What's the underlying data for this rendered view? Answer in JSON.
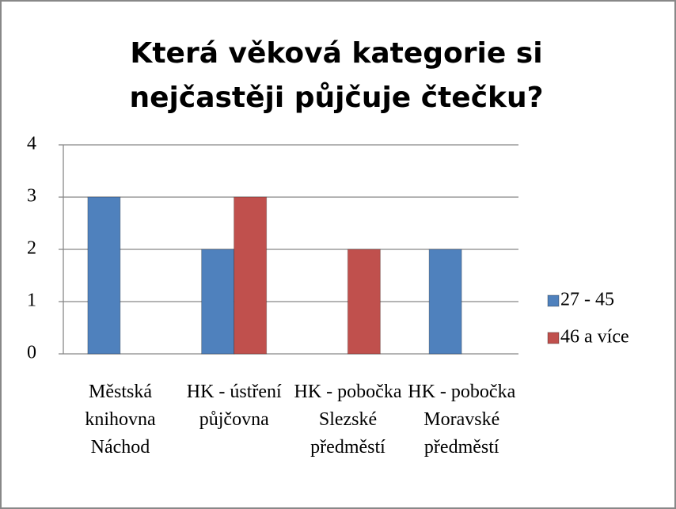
{
  "chart_data": {
    "type": "bar",
    "title": "Která věková kategorie si nejčastěji půjčuje čtečku?",
    "categories": [
      "Městská knihovna Náchod",
      "HK - ústření půjčovna",
      "HK - pobočka Slezské předměstí",
      "HK - pobočka Moravské předměstí"
    ],
    "series": [
      {
        "name": "27 - 45",
        "color": "#4f81bd",
        "values": [
          3,
          2,
          0,
          2
        ]
      },
      {
        "name": "46 a více",
        "color": "#c0504d",
        "values": [
          0,
          3,
          2,
          0
        ]
      }
    ],
    "ylim": [
      0,
      4
    ],
    "yticks": [
      0,
      1,
      2,
      3,
      4
    ],
    "grid": true,
    "legend": "right"
  }
}
